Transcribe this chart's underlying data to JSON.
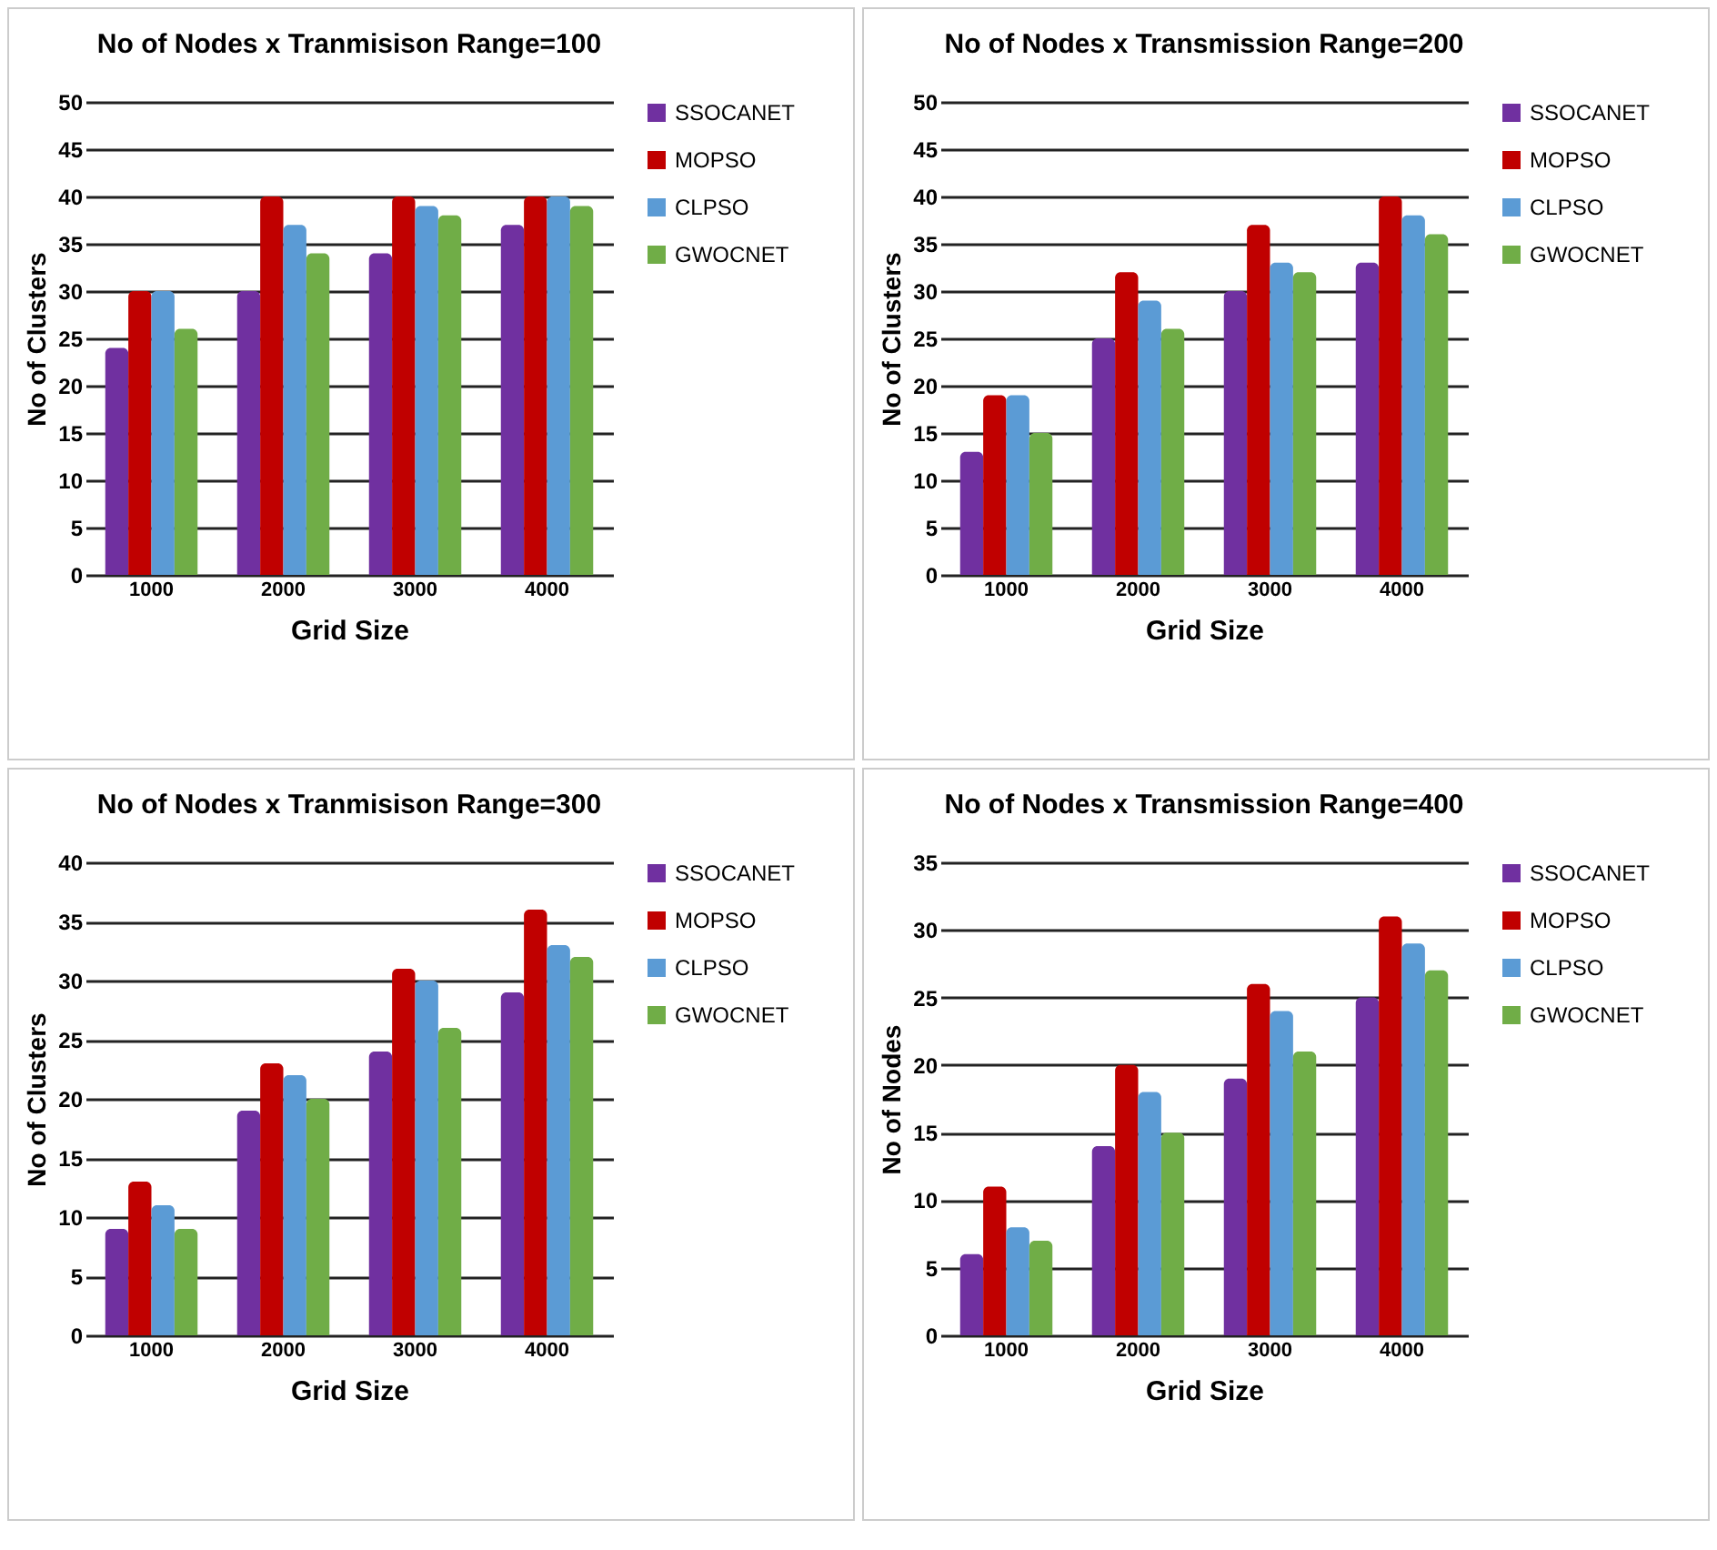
{
  "chart_data": [
    {
      "type": "bar",
      "title": "No of Nodes x Tranmisison Range=100",
      "xlabel": "Grid Size",
      "ylabel": "No of Clusters",
      "categories": [
        "1000",
        "2000",
        "3000",
        "4000"
      ],
      "ylim": [
        0,
        50
      ],
      "yticks": [
        0,
        5,
        10,
        15,
        20,
        25,
        30,
        35,
        40,
        45,
        50
      ],
      "grid": "y",
      "legend": "right",
      "series": [
        {
          "name": "SSOCANET",
          "color": "#7030a0",
          "values": [
            24,
            30,
            34,
            37
          ]
        },
        {
          "name": "MOPSO",
          "color": "#c00000",
          "values": [
            30,
            40,
            40,
            40
          ]
        },
        {
          "name": "CLPSO",
          "color": "#5b9bd5",
          "values": [
            30,
            37,
            39,
            40
          ]
        },
        {
          "name": "GWOCNET",
          "color": "#70ad47",
          "values": [
            26,
            34,
            38,
            39
          ]
        }
      ]
    },
    {
      "type": "bar",
      "title": "No of Nodes x Transmission Range=200",
      "xlabel": "Grid Size",
      "ylabel": "No of Clusters",
      "categories": [
        "1000",
        "2000",
        "3000",
        "4000"
      ],
      "ylim": [
        0,
        50
      ],
      "yticks": [
        0,
        5,
        10,
        15,
        20,
        25,
        30,
        35,
        40,
        45,
        50
      ],
      "grid": "y",
      "legend": "right",
      "series": [
        {
          "name": "SSOCANET",
          "color": "#7030a0",
          "values": [
            13,
            25,
            30,
            33
          ]
        },
        {
          "name": "MOPSO",
          "color": "#c00000",
          "values": [
            19,
            32,
            37,
            40
          ]
        },
        {
          "name": "CLPSO",
          "color": "#5b9bd5",
          "values": [
            19,
            29,
            33,
            38
          ]
        },
        {
          "name": "GWOCNET",
          "color": "#70ad47",
          "values": [
            15,
            26,
            32,
            36
          ]
        }
      ]
    },
    {
      "type": "bar",
      "title": "No of Nodes x Tranmisison Range=300",
      "xlabel": "Grid Size",
      "ylabel": "No of Clusters",
      "categories": [
        "1000",
        "2000",
        "3000",
        "4000"
      ],
      "ylim": [
        0,
        40
      ],
      "yticks": [
        0,
        5,
        10,
        15,
        20,
        25,
        30,
        35,
        40
      ],
      "grid": "y",
      "legend": "right",
      "series": [
        {
          "name": "SSOCANET",
          "color": "#7030a0",
          "values": [
            9,
            19,
            24,
            29
          ]
        },
        {
          "name": "MOPSO",
          "color": "#c00000",
          "values": [
            13,
            23,
            31,
            36
          ]
        },
        {
          "name": "CLPSO",
          "color": "#5b9bd5",
          "values": [
            11,
            22,
            30,
            33
          ]
        },
        {
          "name": "GWOCNET",
          "color": "#70ad47",
          "values": [
            9,
            20,
            26,
            32
          ]
        }
      ]
    },
    {
      "type": "bar",
      "title": "No of Nodes x Transmission Range=400",
      "xlabel": "Grid Size",
      "ylabel": "No of Nodes",
      "categories": [
        "1000",
        "2000",
        "3000",
        "4000"
      ],
      "ylim": [
        0,
        35
      ],
      "yticks": [
        0,
        5,
        10,
        15,
        20,
        25,
        30,
        35
      ],
      "grid": "y",
      "legend": "right",
      "series": [
        {
          "name": "SSOCANET",
          "color": "#7030a0",
          "values": [
            6,
            14,
            19,
            25
          ]
        },
        {
          "name": "MOPSO",
          "color": "#c00000",
          "values": [
            11,
            20,
            26,
            31
          ]
        },
        {
          "name": "CLPSO",
          "color": "#5b9bd5",
          "values": [
            8,
            18,
            24,
            29
          ]
        },
        {
          "name": "GWOCNET",
          "color": "#70ad47",
          "values": [
            7,
            15,
            21,
            27
          ]
        }
      ]
    }
  ]
}
